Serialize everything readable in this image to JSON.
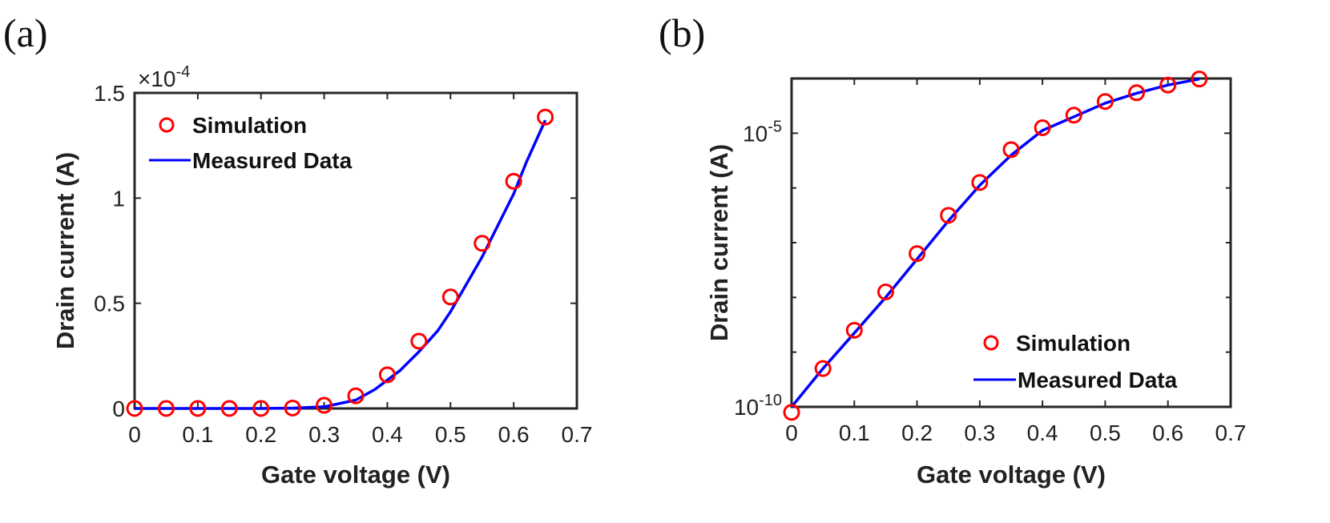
{
  "chart_data": [
    {
      "panel_label": "(a)",
      "type": "line",
      "yscale": "linear",
      "title": "",
      "xlabel": "Gate voltage (V)",
      "ylabel": "Drain current (A)",
      "y_multiplier": "×10",
      "y_multiplier_exp": "-4",
      "xlim": [
        0,
        0.7
      ],
      "ylim": [
        0,
        1.5
      ],
      "xticks": [
        0,
        0.1,
        0.2,
        0.3,
        0.4,
        0.5,
        0.6,
        0.7
      ],
      "xtick_labels": [
        "0",
        "0.1",
        "0.2",
        "0.3",
        "0.4",
        "0.5",
        "0.6",
        "0.7"
      ],
      "yticks": [
        0,
        0.5,
        1,
        1.5
      ],
      "ytick_labels": [
        "0",
        "0.5",
        "1",
        "1.5"
      ],
      "grid": false,
      "legend_position": "top-left",
      "series": [
        {
          "name": "Simulation",
          "style": "markers",
          "marker": "circle",
          "color": "#ff0000",
          "x": [
            0,
            0.05,
            0.1,
            0.15,
            0.2,
            0.25,
            0.3,
            0.35,
            0.4,
            0.45,
            0.5,
            0.55,
            0.6,
            0.65
          ],
          "y": [
            0,
            0,
            0,
            0,
            0,
            0.002,
            0.015,
            0.06,
            0.16,
            0.32,
            0.53,
            0.785,
            1.08,
            1.385
          ]
        },
        {
          "name": "Measured Data",
          "style": "line",
          "color": "#0000ff",
          "x": [
            0,
            0.05,
            0.1,
            0.15,
            0.2,
            0.25,
            0.3,
            0.35,
            0.38,
            0.42,
            0.45,
            0.48,
            0.5,
            0.55,
            0.6,
            0.62,
            0.65
          ],
          "y": [
            0,
            0,
            0,
            0,
            0,
            0.002,
            0.008,
            0.04,
            0.09,
            0.18,
            0.27,
            0.37,
            0.46,
            0.72,
            1.02,
            1.17,
            1.37
          ]
        }
      ]
    },
    {
      "panel_label": "(b)",
      "type": "line",
      "yscale": "log",
      "title": "",
      "xlabel": "Gate voltage (V)",
      "ylabel": "Drain current (A)",
      "xlim": [
        0,
        0.7
      ],
      "ylim_log10": [
        -10,
        -4
      ],
      "xticks": [
        0,
        0.1,
        0.2,
        0.3,
        0.4,
        0.5,
        0.6,
        0.7
      ],
      "xtick_labels": [
        "0",
        "0.1",
        "0.2",
        "0.3",
        "0.4",
        "0.5",
        "0.6",
        "0.7"
      ],
      "yticks_log10": [
        -10,
        -5
      ],
      "ytick_labels": [
        {
          "base": "10",
          "exp": "-10"
        },
        {
          "base": "10",
          "exp": "-5"
        }
      ],
      "minor_yticks_log10": [
        -9,
        -8,
        -7,
        -6
      ],
      "grid": false,
      "legend_position": "bottom-right",
      "series": [
        {
          "name": "Simulation",
          "style": "markers",
          "marker": "circle",
          "color": "#ff0000",
          "x": [
            0,
            0.05,
            0.1,
            0.15,
            0.2,
            0.25,
            0.3,
            0.35,
            0.4,
            0.45,
            0.5,
            0.55,
            0.6,
            0.65
          ],
          "y_log10": [
            -10.1,
            -9.3,
            -8.6,
            -7.9,
            -7.2,
            -6.5,
            -5.9,
            -5.3,
            -4.9,
            -4.67,
            -4.42,
            -4.26,
            -4.12,
            -4.01
          ]
        },
        {
          "name": "Measured Data",
          "style": "line",
          "color": "#0000ff",
          "x": [
            0,
            0.05,
            0.1,
            0.15,
            0.2,
            0.25,
            0.3,
            0.35,
            0.4,
            0.45,
            0.5,
            0.55,
            0.6,
            0.65
          ],
          "y_log10": [
            -10.0,
            -9.3,
            -8.65,
            -8.0,
            -7.3,
            -6.6,
            -5.95,
            -5.4,
            -4.95,
            -4.7,
            -4.45,
            -4.27,
            -4.12,
            -4.01
          ]
        }
      ]
    }
  ]
}
